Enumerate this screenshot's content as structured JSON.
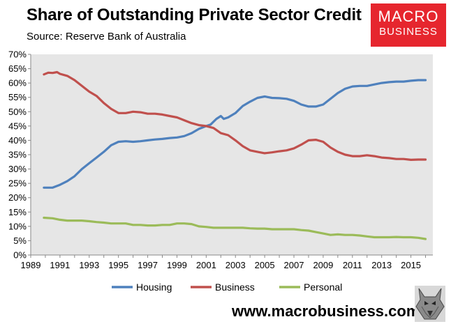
{
  "header": {
    "title": "Share of Outstanding Private Sector Credit",
    "subtitle": "Source: Reserve Bank of Australia"
  },
  "logo": {
    "line1": "MACRO",
    "line2": "BUSINESS"
  },
  "footer": {
    "url": "www.macrobusiness.com.au"
  },
  "icons": {
    "wolf": "wolf-head-icon"
  },
  "colors": {
    "housing": "#4f81bd",
    "business": "#c0504d",
    "personal": "#9bbb59",
    "plot_bg": "#e6e6e6",
    "logo_bg": "#e6262e"
  },
  "chart_data": {
    "type": "line",
    "title": "Share of Outstanding Private Sector Credit",
    "xlabel": "",
    "ylabel": "",
    "xlim": [
      1989,
      2016.5
    ],
    "ylim": [
      0,
      70
    ],
    "x_ticks": [
      "1989",
      "1991",
      "1993",
      "1995",
      "1997",
      "1999",
      "2001",
      "2003",
      "2005",
      "2007",
      "2009",
      "2011",
      "2013",
      "2015"
    ],
    "y_ticks": [
      "0%",
      "5%",
      "10%",
      "15%",
      "20%",
      "25%",
      "30%",
      "35%",
      "40%",
      "45%",
      "50%",
      "55%",
      "60%",
      "65%",
      "70%"
    ],
    "legend_position": "bottom",
    "series": [
      {
        "name": "Housing",
        "color": "#4f81bd",
        "points": [
          [
            1989.9,
            23.5
          ],
          [
            1990.5,
            23.5
          ],
          [
            1991,
            24.5
          ],
          [
            1991.5,
            25.8
          ],
          [
            1992,
            27.5
          ],
          [
            1992.5,
            30
          ],
          [
            1993,
            32
          ],
          [
            1993.5,
            34
          ],
          [
            1994,
            36
          ],
          [
            1994.5,
            38.3
          ],
          [
            1995,
            39.5
          ],
          [
            1995.5,
            39.7
          ],
          [
            1996,
            39.5
          ],
          [
            1996.5,
            39.7
          ],
          [
            1997,
            40
          ],
          [
            1997.5,
            40.3
          ],
          [
            1998,
            40.5
          ],
          [
            1998.5,
            40.8
          ],
          [
            1999,
            41
          ],
          [
            1999.5,
            41.5
          ],
          [
            2000,
            42.5
          ],
          [
            2000.5,
            44
          ],
          [
            2001,
            45
          ],
          [
            2001.3,
            45.5
          ],
          [
            2001.7,
            47.5
          ],
          [
            2002,
            48.5
          ],
          [
            2002.2,
            47.5
          ],
          [
            2002.5,
            48
          ],
          [
            2003,
            49.5
          ],
          [
            2003.5,
            52
          ],
          [
            2004,
            53.5
          ],
          [
            2004.5,
            54.8
          ],
          [
            2005,
            55.3
          ],
          [
            2005.5,
            54.8
          ],
          [
            2006,
            54.7
          ],
          [
            2006.5,
            54.5
          ],
          [
            2007,
            53.8
          ],
          [
            2007.5,
            52.5
          ],
          [
            2008,
            51.8
          ],
          [
            2008.5,
            51.8
          ],
          [
            2009,
            52.5
          ],
          [
            2009.5,
            54.5
          ],
          [
            2010,
            56.5
          ],
          [
            2010.5,
            58
          ],
          [
            2011,
            58.8
          ],
          [
            2011.5,
            59
          ],
          [
            2012,
            59
          ],
          [
            2012.5,
            59.5
          ],
          [
            2013,
            60
          ],
          [
            2013.5,
            60.3
          ],
          [
            2014,
            60.5
          ],
          [
            2014.5,
            60.5
          ],
          [
            2015,
            60.8
          ],
          [
            2015.5,
            61
          ],
          [
            2016,
            61
          ]
        ]
      },
      {
        "name": "Business",
        "color": "#c0504d",
        "points": [
          [
            1989.9,
            63
          ],
          [
            1990.2,
            63.6
          ],
          [
            1990.5,
            63.5
          ],
          [
            1990.8,
            63.8
          ],
          [
            1991,
            63.2
          ],
          [
            1991.5,
            62.5
          ],
          [
            1992,
            61
          ],
          [
            1992.5,
            59
          ],
          [
            1993,
            57
          ],
          [
            1993.5,
            55.5
          ],
          [
            1994,
            53
          ],
          [
            1994.5,
            51
          ],
          [
            1995,
            49.5
          ],
          [
            1995.5,
            49.5
          ],
          [
            1996,
            50
          ],
          [
            1996.5,
            49.8
          ],
          [
            1997,
            49.3
          ],
          [
            1997.5,
            49.3
          ],
          [
            1998,
            49
          ],
          [
            1998.5,
            48.5
          ],
          [
            1999,
            48
          ],
          [
            1999.5,
            47
          ],
          [
            2000,
            46
          ],
          [
            2000.5,
            45.3
          ],
          [
            2001,
            45
          ],
          [
            2001.5,
            44.3
          ],
          [
            2002,
            42.5
          ],
          [
            2002.5,
            41.8
          ],
          [
            2003,
            40
          ],
          [
            2003.5,
            38
          ],
          [
            2004,
            36.5
          ],
          [
            2004.5,
            36
          ],
          [
            2005,
            35.5
          ],
          [
            2005.5,
            35.8
          ],
          [
            2006,
            36.2
          ],
          [
            2006.5,
            36.5
          ],
          [
            2007,
            37.2
          ],
          [
            2007.5,
            38.5
          ],
          [
            2008,
            40
          ],
          [
            2008.5,
            40.2
          ],
          [
            2009,
            39.5
          ],
          [
            2009.5,
            37.5
          ],
          [
            2010,
            36
          ],
          [
            2010.5,
            35
          ],
          [
            2011,
            34.5
          ],
          [
            2011.5,
            34.5
          ],
          [
            2012,
            34.8
          ],
          [
            2012.5,
            34.5
          ],
          [
            2013,
            34
          ],
          [
            2013.5,
            33.8
          ],
          [
            2014,
            33.5
          ],
          [
            2014.5,
            33.5
          ],
          [
            2015,
            33.2
          ],
          [
            2015.5,
            33.3
          ],
          [
            2016,
            33.3
          ]
        ]
      },
      {
        "name": "Personal",
        "color": "#9bbb59",
        "points": [
          [
            1989.9,
            13
          ],
          [
            1990.5,
            12.8
          ],
          [
            1991,
            12.3
          ],
          [
            1991.5,
            12
          ],
          [
            1992,
            12
          ],
          [
            1992.5,
            12
          ],
          [
            1993,
            11.8
          ],
          [
            1993.5,
            11.5
          ],
          [
            1994,
            11.3
          ],
          [
            1994.5,
            11
          ],
          [
            1995,
            11
          ],
          [
            1995.5,
            11
          ],
          [
            1996,
            10.5
          ],
          [
            1996.5,
            10.5
          ],
          [
            1997,
            10.3
          ],
          [
            1997.5,
            10.3
          ],
          [
            1998,
            10.5
          ],
          [
            1998.5,
            10.5
          ],
          [
            1999,
            11
          ],
          [
            1999.5,
            11
          ],
          [
            2000,
            10.8
          ],
          [
            2000.5,
            10
          ],
          [
            2001,
            9.8
          ],
          [
            2001.5,
            9.5
          ],
          [
            2002,
            9.5
          ],
          [
            2002.5,
            9.5
          ],
          [
            2003,
            9.5
          ],
          [
            2003.5,
            9.5
          ],
          [
            2004,
            9.3
          ],
          [
            2004.5,
            9.2
          ],
          [
            2005,
            9.2
          ],
          [
            2005.5,
            9
          ],
          [
            2006,
            9
          ],
          [
            2006.5,
            9
          ],
          [
            2007,
            9
          ],
          [
            2007.5,
            8.7
          ],
          [
            2008,
            8.5
          ],
          [
            2008.5,
            8
          ],
          [
            2009,
            7.5
          ],
          [
            2009.5,
            7
          ],
          [
            2010,
            7.2
          ],
          [
            2010.5,
            7
          ],
          [
            2011,
            7
          ],
          [
            2011.5,
            6.8
          ],
          [
            2012,
            6.5
          ],
          [
            2012.5,
            6.2
          ],
          [
            2013,
            6.2
          ],
          [
            2013.5,
            6.2
          ],
          [
            2014,
            6.3
          ],
          [
            2014.5,
            6.2
          ],
          [
            2015,
            6.2
          ],
          [
            2015.5,
            6
          ],
          [
            2016,
            5.6
          ]
        ]
      }
    ]
  }
}
